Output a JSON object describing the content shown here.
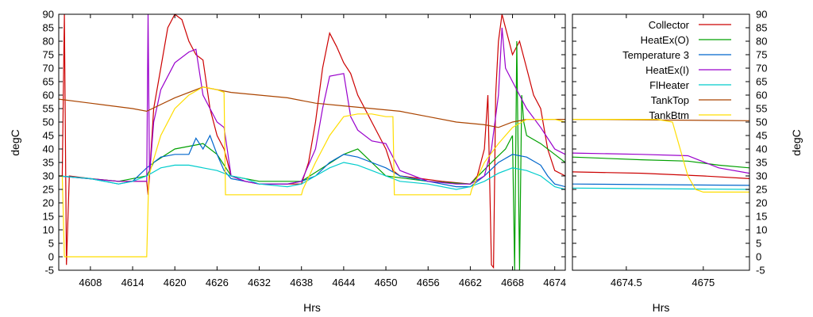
{
  "chart_data": [
    {
      "type": "line",
      "panel": "main",
      "xlabel": "Hrs",
      "ylabel": "degC",
      "xlim": [
        4603.5,
        4675.5
      ],
      "ylim": [
        -5,
        90
      ],
      "xticks": [
        4608,
        4614,
        4620,
        4626,
        4632,
        4638,
        4644,
        4650,
        4656,
        4662,
        4668,
        4674
      ],
      "yticks": [
        -5,
        0,
        5,
        10,
        15,
        20,
        25,
        30,
        35,
        40,
        45,
        50,
        55,
        60,
        65,
        70,
        75,
        80,
        85,
        90
      ],
      "grid": false,
      "series": [
        {
          "name": "Collector",
          "color": "#cc0000",
          "x": [
            4603.5,
            4604,
            4604.3,
            4604.6,
            4605,
            4608,
            4612,
            4614,
            4616,
            4616.2,
            4616.4,
            4617,
            4618,
            4619,
            4620,
            4621,
            4622,
            4623,
            4624,
            4625,
            4626,
            4627,
            4628,
            4630,
            4632,
            4635,
            4638,
            4639,
            4640,
            4641,
            4642,
            4643,
            4644,
            4645,
            4646,
            4647,
            4648,
            4649,
            4650,
            4651,
            4652,
            4655,
            4658,
            4662,
            4663,
            4664,
            4664.5,
            4665,
            4665.3,
            4665.6,
            4666,
            4666.5,
            4667,
            4668,
            4669,
            4670,
            4671,
            4672,
            4673,
            4674,
            4675.5
          ],
          "y": [
            30,
            30,
            90,
            -3,
            30,
            29,
            28,
            28,
            28,
            23,
            30,
            55,
            70,
            85,
            90,
            88,
            80,
            75,
            73,
            55,
            45,
            40,
            30,
            28,
            27,
            27,
            27,
            35,
            50,
            70,
            83,
            78,
            72,
            68,
            60,
            55,
            50,
            45,
            40,
            32,
            30,
            29,
            28,
            27,
            30,
            40,
            60,
            -3,
            -4,
            60,
            80,
            90,
            85,
            75,
            80,
            70,
            60,
            55,
            40,
            32,
            30
          ]
        },
        {
          "name": "HeatEx(O)",
          "color": "#00a000",
          "x": [
            4603.5,
            4612,
            4616,
            4617,
            4620,
            4624,
            4626,
            4628,
            4632,
            4638,
            4644,
            4646,
            4650,
            4656,
            4662,
            4665,
            4667,
            4668,
            4668.3,
            4668.6,
            4669,
            4669.3,
            4669.6,
            4670,
            4672,
            4674,
            4675.5
          ],
          "y": [
            30,
            28,
            30,
            35,
            40,
            42,
            38,
            30,
            28,
            28,
            38,
            40,
            30,
            28,
            27,
            35,
            40,
            45,
            -5,
            80,
            -5,
            60,
            50,
            45,
            42,
            38,
            35
          ]
        },
        {
          "name": "Temperature 3",
          "color": "#0066cc",
          "x": [
            4603.5,
            4608,
            4612,
            4614,
            4616,
            4618,
            4620,
            4622,
            4623,
            4624,
            4625,
            4626,
            4627,
            4628,
            4630,
            4632,
            4636,
            4638,
            4640,
            4642,
            4644,
            4646,
            4648,
            4650,
            4652,
            4656,
            4660,
            4662,
            4664,
            4666,
            4668,
            4670,
            4672,
            4673,
            4674,
            4675.5
          ],
          "y": [
            30,
            29,
            27,
            28,
            33,
            37,
            38,
            38,
            44,
            40,
            45,
            38,
            32,
            29,
            28,
            27,
            27,
            28,
            30,
            35,
            38,
            37,
            35,
            33,
            30,
            28,
            26,
            26,
            30,
            35,
            38,
            37,
            34,
            30,
            27,
            26
          ]
        },
        {
          "name": "HeatEx(I)",
          "color": "#9900cc",
          "x": [
            4603.5,
            4612,
            4615,
            4616,
            4616.2,
            4616.4,
            4617,
            4618,
            4620,
            4622,
            4623,
            4624,
            4625,
            4626,
            4627,
            4628,
            4630,
            4632,
            4636,
            4638,
            4640,
            4641,
            4642,
            4644,
            4645,
            4646,
            4648,
            4650,
            4652,
            4656,
            4660,
            4662,
            4664,
            4665,
            4666,
            4666.5,
            4667,
            4668,
            4669,
            4670,
            4672,
            4674,
            4675.5
          ],
          "y": [
            30,
            28,
            28,
            28,
            90,
            30,
            50,
            62,
            72,
            76,
            77,
            60,
            55,
            50,
            48,
            30,
            28,
            27,
            27,
            28,
            40,
            55,
            67,
            68,
            52,
            47,
            43,
            42,
            32,
            28,
            27,
            27,
            30,
            40,
            60,
            85,
            70,
            65,
            60,
            55,
            48,
            40,
            38
          ]
        },
        {
          "name": "FlHeater",
          "color": "#00cccc",
          "x": [
            4603.5,
            4608,
            4612,
            4614,
            4616,
            4618,
            4620,
            4622,
            4624,
            4626,
            4628,
            4630,
            4632,
            4636,
            4638,
            4640,
            4642,
            4644,
            4646,
            4648,
            4650,
            4652,
            4656,
            4660,
            4662,
            4664,
            4666,
            4668,
            4670,
            4672,
            4674,
            4675.5
          ],
          "y": [
            30,
            29,
            27,
            28,
            30,
            33,
            34,
            34,
            33,
            32,
            30,
            29,
            27,
            26,
            27,
            30,
            33,
            35,
            34,
            32,
            30,
            28,
            27,
            25,
            26,
            28,
            31,
            33,
            32,
            30,
            26,
            25
          ]
        },
        {
          "name": "TankTop",
          "color": "#aa4400",
          "x": [
            4603.5,
            4608,
            4614,
            4616,
            4620,
            4624,
            4628,
            4632,
            4636,
            4640,
            4644,
            4648,
            4652,
            4656,
            4660,
            4664,
            4666,
            4668,
            4670,
            4672,
            4675.5
          ],
          "y": [
            58.5,
            57,
            55,
            54,
            59,
            63,
            61,
            60,
            59,
            57,
            56,
            55,
            54,
            52,
            50,
            49,
            48,
            50,
            51,
            51,
            51
          ]
        },
        {
          "name": "TankBtm",
          "color": "#ffdd00",
          "x": [
            4603.5,
            4604,
            4604.3,
            4616,
            4616.3,
            4618,
            4620,
            4622,
            4624,
            4626,
            4627,
            4627.2,
            4630,
            4634,
            4638,
            4638.2,
            4640,
            4642,
            4644,
            4646,
            4648,
            4650,
            4651,
            4651.2,
            4655,
            4660,
            4662,
            4662.2,
            4664,
            4666,
            4668,
            4670,
            4672,
            4674,
            4675.5
          ],
          "y": [
            30,
            30,
            0,
            0,
            30,
            45,
            55,
            60,
            63,
            62,
            61,
            23,
            23,
            23,
            23,
            25,
            35,
            45,
            52,
            53,
            53,
            52,
            52,
            23,
            23,
            23,
            23,
            25,
            35,
            42,
            48,
            51,
            51,
            51,
            50
          ]
        }
      ]
    },
    {
      "type": "line",
      "panel": "zoom",
      "xlabel": "Hrs",
      "ylabel": "degC",
      "xlim": [
        4674.15,
        4675.3
      ],
      "ylim": [
        -5,
        90
      ],
      "xticks": [
        4674.5,
        4675
      ],
      "xtick_labels": [
        "4674.5",
        "4675"
      ],
      "yticks": [
        -5,
        0,
        5,
        10,
        15,
        20,
        25,
        30,
        35,
        40,
        45,
        50,
        55,
        60,
        65,
        70,
        75,
        80,
        85,
        90
      ],
      "legend": "top-right",
      "grid": false,
      "series": [
        {
          "name": "Collector",
          "color": "#cc0000",
          "x": [
            4674.15,
            4674.6,
            4675,
            4675.3
          ],
          "y": [
            31.5,
            31,
            30,
            29
          ]
        },
        {
          "name": "HeatEx(O)",
          "color": "#00a000",
          "x": [
            4674.15,
            4674.6,
            4674.9,
            4675.1,
            4675.3
          ],
          "y": [
            37,
            36,
            35.5,
            34,
            33
          ]
        },
        {
          "name": "Temperature 3",
          "color": "#0066cc",
          "x": [
            4674.15,
            4675.3
          ],
          "y": [
            27,
            26.5
          ]
        },
        {
          "name": "HeatEx(I)",
          "color": "#9900cc",
          "x": [
            4674.15,
            4674.6,
            4674.9,
            4675.1,
            4675.3
          ],
          "y": [
            38.5,
            38,
            37.5,
            33,
            31
          ]
        },
        {
          "name": "FlHeater",
          "color": "#00cccc",
          "x": [
            4674.15,
            4675.3
          ],
          "y": [
            25.5,
            25
          ]
        },
        {
          "name": "TankTop",
          "color": "#aa4400",
          "x": [
            4674.15,
            4675.3
          ],
          "y": [
            51,
            50.5
          ]
        },
        {
          "name": "TankBtm",
          "color": "#ffdd00",
          "x": [
            4674.15,
            4674.7,
            4674.8,
            4674.85,
            4674.9,
            4674.95,
            4675,
            4675.3
          ],
          "y": [
            51,
            51,
            50,
            40,
            30,
            25,
            24,
            24
          ]
        }
      ]
    }
  ]
}
